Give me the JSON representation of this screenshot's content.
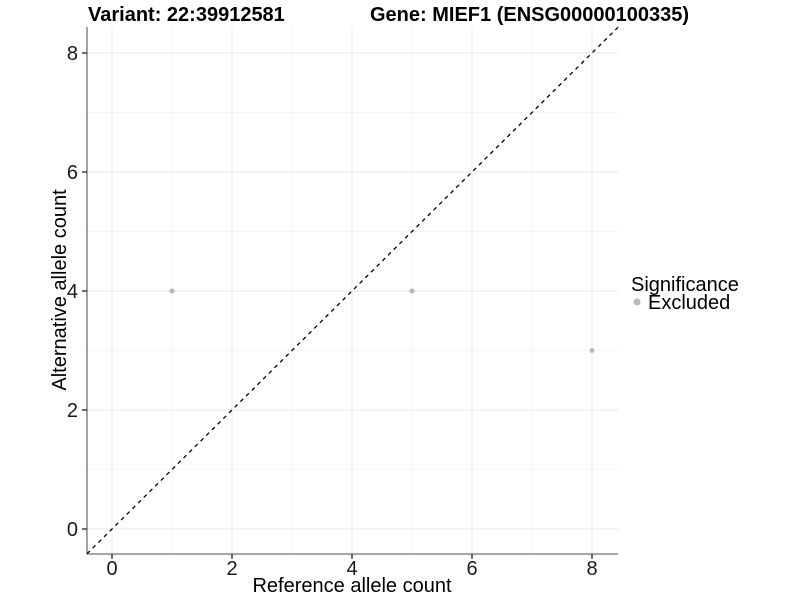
{
  "figure": {
    "title_left": "Variant: 22:39912581",
    "title_right": "Gene: MIEF1 (ENSG00000100335)"
  },
  "chart_data": {
    "type": "scatter",
    "title": "Variant: 22:39912581 / Gene: MIEF1 (ENSG00000100335)",
    "xlabel": "Reference allele count",
    "ylabel": "Alternative allele count",
    "xlim": [
      -0.42,
      8.43
    ],
    "ylim": [
      -0.42,
      8.44
    ],
    "x_ticks": [
      0,
      2,
      4,
      6,
      8
    ],
    "y_ticks": [
      0,
      2,
      4,
      6,
      8
    ],
    "x_minor_ticks": [
      1,
      3,
      5,
      7
    ],
    "y_minor_ticks": [
      1,
      3,
      5,
      7
    ],
    "grid": "major-and-minor",
    "series": [
      {
        "name": "Excluded",
        "color": "#b8b8b8",
        "points": [
          {
            "x": 1,
            "y": 4
          },
          {
            "x": 5,
            "y": 4
          },
          {
            "x": 8,
            "y": 3
          }
        ]
      }
    ],
    "reference_line": {
      "kind": "identity",
      "equation": "y = x",
      "style": "dashed",
      "color": "#000000"
    },
    "legend": {
      "title": "Significance",
      "position": "right",
      "entries": [
        {
          "label": "Excluded",
          "color": "#b8b8b8"
        }
      ]
    }
  },
  "colors": {
    "point": "#b8b8b8",
    "grid_major": "#ececec",
    "grid_minor": "#f5f5f5",
    "axis_line": "#8a8a8a",
    "tick_mark": "#333333",
    "dashed_line": "#000000",
    "background": "#ffffff"
  }
}
